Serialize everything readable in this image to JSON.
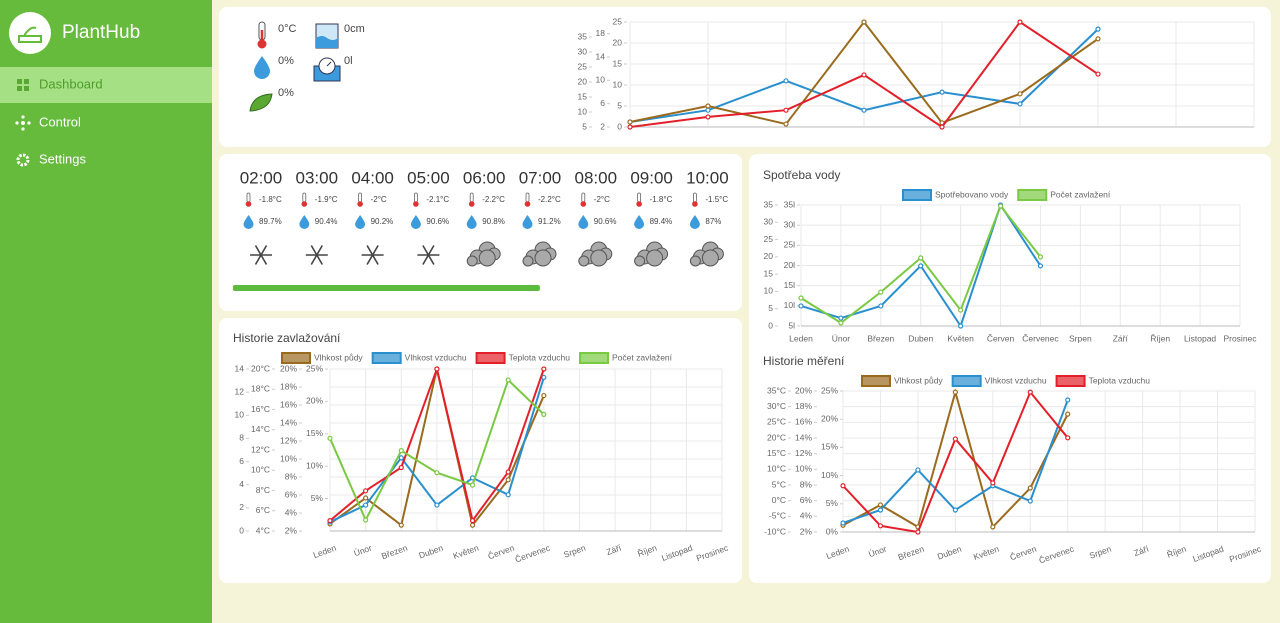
{
  "sidebar": {
    "brand": "PlantHub",
    "nav": [
      "Dashboard",
      "Control",
      "Settings"
    ]
  },
  "sensors": {
    "air_temperature": "0°C",
    "air_humidity": "0%",
    "soil_humidity": "0%",
    "water_level": "0cm",
    "water_used": "0l"
  },
  "forecast": {
    "hours": [
      {
        "time": "02:00",
        "temperature": "-1.8°C",
        "humidity": "89.7%",
        "weather": "snow"
      },
      {
        "time": "03:00",
        "temperature": "-1.9°C",
        "humidity": "90.4%",
        "weather": "snow"
      },
      {
        "time": "04:00",
        "temperature": "-2°C",
        "humidity": "90.2%",
        "weather": "snow"
      },
      {
        "time": "05:00",
        "temperature": "-2.1°C",
        "humidity": "90.6%",
        "weather": "snow"
      },
      {
        "time": "06:00",
        "temperature": "-2.2°C",
        "humidity": "90.8%",
        "weather": "cloud"
      },
      {
        "time": "07:00",
        "temperature": "-2.2°C",
        "humidity": "91.2%",
        "weather": "cloud"
      },
      {
        "time": "08:00",
        "temperature": "-2°C",
        "humidity": "90.6%",
        "weather": "cloud"
      },
      {
        "time": "09:00",
        "temperature": "-1.8°C",
        "humidity": "89.4%",
        "weather": "cloud"
      },
      {
        "time": "10:00",
        "temperature": "-1.5°C",
        "humidity": "87%",
        "weather": "cloud"
      }
    ],
    "progress": 62
  },
  "charts": {
    "overview": {
      "type": "line",
      "categories": [
        null,
        null,
        null,
        null,
        null,
        null,
        null,
        null,
        null
      ],
      "axes": [
        {
          "lim": [
            5,
            40
          ],
          "ticks": [
            5,
            10,
            15,
            20,
            25,
            30,
            35
          ]
        },
        {
          "lim": [
            2,
            20
          ],
          "ticks": [
            2,
            6,
            10,
            14,
            18
          ]
        },
        {
          "lim": [
            0,
            25
          ],
          "ticks": [
            0,
            5,
            10,
            15,
            20,
            25
          ]
        }
      ],
      "series": [
        {
          "color": "#2a8fcf",
          "axis": 2,
          "values": [
            1.2,
            4,
            11,
            4,
            8.3,
            5.5,
            23.3,
            null,
            null
          ]
        },
        {
          "color": "#9a6a1e",
          "axis": 2,
          "values": [
            1.2,
            5,
            0.7,
            25,
            1,
            7.9,
            21,
            null,
            null
          ]
        },
        {
          "color": "#e3202a",
          "axis": 2,
          "values": [
            0,
            2.4,
            4,
            12.4,
            0,
            25,
            12.6,
            null,
            null
          ]
        }
      ]
    },
    "water": {
      "type": "line",
      "title": "Spotřeba vody",
      "categories": [
        "Leden",
        "Únor",
        "Březen",
        "Duben",
        "Květen",
        "Červen",
        "Červenec",
        "Srpen",
        "Září",
        "Říjen",
        "Listopad",
        "Prosinec"
      ],
      "axes": [
        {
          "lim": [
            0,
            35
          ],
          "ticks": [
            0,
            5,
            10,
            15,
            20,
            25,
            30,
            35
          ]
        },
        {
          "lim": [
            5,
            35
          ],
          "ticks": [
            {
              "value": 5,
              "label": "5l"
            },
            {
              "value": 10,
              "label": "10l"
            },
            {
              "value": 15,
              "label": "15l"
            },
            {
              "value": 20,
              "label": "20l"
            },
            {
              "value": 25,
              "label": "25l"
            },
            {
              "value": 30,
              "label": "30l"
            },
            {
              "value": 35,
              "label": "35l"
            }
          ]
        }
      ],
      "series": [
        {
          "name": "Spotřebovano vody",
          "color": "#2a8fcf",
          "axis": 0,
          "values": [
            5.8,
            2.3,
            5.8,
            17.4,
            0,
            35,
            17.4,
            null,
            null,
            null,
            null,
            null
          ]
        },
        {
          "name": "Počet zavlažení",
          "color": "#7ac943",
          "axis": 0,
          "values": [
            8.1,
            0.9,
            9.8,
            19.7,
            4.6,
            34.7,
            20,
            null,
            null,
            null,
            null,
            null
          ]
        }
      ]
    },
    "irrigation": {
      "type": "line",
      "title": "Historie zavlažování",
      "categories": [
        "Leden",
        "Únor",
        "Březen",
        "Duben",
        "Květen",
        "Červen",
        "Červenec",
        "Srpen",
        "Září",
        "Říjen",
        "Listopad",
        "Prosinec"
      ],
      "axes": [
        {
          "lim": [
            0,
            14
          ],
          "ticks": [
            0,
            2,
            4,
            6,
            8,
            10,
            12,
            14
          ]
        },
        {
          "lim": [
            4,
            20
          ],
          "ticks": [
            {
              "value": 4,
              "label": "4°C"
            },
            {
              "value": 6,
              "label": "6°C"
            },
            {
              "value": 8,
              "label": "8°C"
            },
            {
              "value": 10,
              "label": "10°C"
            },
            {
              "value": 12,
              "label": "12°C"
            },
            {
              "value": 14,
              "label": "14°C"
            },
            {
              "value": 16,
              "label": "16°C"
            },
            {
              "value": 18,
              "label": "18°C"
            },
            {
              "value": 20,
              "label": "20°C"
            }
          ]
        },
        {
          "lim": [
            2,
            20
          ],
          "ticks": [
            {
              "value": 2,
              "label": "2%"
            },
            {
              "value": 4,
              "label": "4%"
            },
            {
              "value": 6,
              "label": "6%"
            },
            {
              "value": 8,
              "label": "8%"
            },
            {
              "value": 10,
              "label": "10%"
            },
            {
              "value": 12,
              "label": "12%"
            },
            {
              "value": 14,
              "label": "14%"
            },
            {
              "value": 16,
              "label": "16%"
            },
            {
              "value": 18,
              "label": "18%"
            },
            {
              "value": 20,
              "label": "20%"
            }
          ]
        },
        {
          "lim": [
            0,
            25
          ],
          "ticks": [
            {
              "value": 5,
              "label": "5%"
            },
            {
              "value": 10,
              "label": "10%"
            },
            {
              "value": 15,
              "label": "15%"
            },
            {
              "value": 20,
              "label": "20%"
            },
            {
              "value": 25,
              "label": "25%"
            }
          ]
        }
      ],
      "series": [
        {
          "name": "Vlhkost půdy",
          "color": "#9a6a1e",
          "axis": 3,
          "values": [
            1.1,
            5.1,
            0.9,
            25,
            0.9,
            7.9,
            20.9,
            null,
            null,
            null,
            null,
            null
          ]
        },
        {
          "name": "Vlhkost vzduchu",
          "color": "#2a8fcf",
          "axis": 3,
          "values": [
            1.4,
            4,
            11.3,
            4,
            8.2,
            5.6,
            23.7,
            null,
            null,
            null,
            null,
            null
          ]
        },
        {
          "name": "Teplota vzduchu",
          "color": "#e3202a",
          "axis": 3,
          "values": [
            1.6,
            6.2,
            9.8,
            25,
            1.6,
            9.1,
            25,
            null,
            null,
            null,
            null,
            null
          ]
        },
        {
          "name": "Počet zavlažení",
          "color": "#7ac943",
          "axis": 3,
          "values": [
            14.3,
            1.7,
            12.4,
            9,
            7.1,
            23.3,
            18,
            null,
            null,
            null,
            null,
            null
          ]
        }
      ]
    },
    "measurements": {
      "type": "line",
      "title": "Historie měření",
      "categories": [
        "Leden",
        "Únor",
        "Březen",
        "Duben",
        "Květen",
        "Červen",
        "Červenec",
        "Srpen",
        "Září",
        "Říjen",
        "Listopad",
        "Prosinec"
      ],
      "axes": [
        {
          "lim": [
            -10,
            35
          ],
          "ticks": [
            {
              "value": -10,
              "label": "-10°C"
            },
            {
              "value": -5,
              "label": "-5°C"
            },
            {
              "value": 0,
              "label": "0°C"
            },
            {
              "value": 5,
              "label": "5°C"
            },
            {
              "value": 10,
              "label": "10°C"
            },
            {
              "value": 15,
              "label": "15°C"
            },
            {
              "value": 20,
              "label": "20°C"
            },
            {
              "value": 25,
              "label": "25°C"
            },
            {
              "value": 30,
              "label": "30°C"
            },
            {
              "value": 35,
              "label": "35°C"
            }
          ]
        },
        {
          "lim": [
            2,
            20
          ],
          "ticks": [
            {
              "value": 2,
              "label": "2%"
            },
            {
              "value": 4,
              "label": "4%"
            },
            {
              "value": 6,
              "label": "6%"
            },
            {
              "value": 8,
              "label": "8%"
            },
            {
              "value": 10,
              "label": "10%"
            },
            {
              "value": 12,
              "label": "12%"
            },
            {
              "value": 14,
              "label": "14%"
            },
            {
              "value": 16,
              "label": "16%"
            },
            {
              "value": 18,
              "label": "18%"
            },
            {
              "value": 20,
              "label": "20%"
            }
          ]
        },
        {
          "lim": [
            0,
            25
          ],
          "ticks": [
            {
              "value": 0,
              "label": "0%"
            },
            {
              "value": 5,
              "label": "5%"
            },
            {
              "value": 10,
              "label": "10%"
            },
            {
              "value": 15,
              "label": "15%"
            },
            {
              "value": 20,
              "label": "20%"
            },
            {
              "value": 25,
              "label": "25%"
            }
          ]
        }
      ],
      "series": [
        {
          "name": "Vlhkost půdy",
          "color": "#9a6a1e",
          "axis": 2,
          "values": [
            1.2,
            4.8,
            0.9,
            24.8,
            0.9,
            7.8,
            20.9,
            null,
            null,
            null,
            null,
            null
          ]
        },
        {
          "name": "Vlhkost vzduchu",
          "color": "#2a8fcf",
          "axis": 2,
          "values": [
            1.6,
            3.9,
            11,
            3.9,
            8.2,
            5.5,
            23.4,
            null,
            null,
            null,
            null,
            null
          ]
        },
        {
          "name": "Teplota vzduchu",
          "color": "#e3202a",
          "axis": 2,
          "values": [
            8.2,
            1.1,
            0,
            16.5,
            8.7,
            24.8,
            16.7,
            null,
            null,
            null,
            null,
            null
          ]
        }
      ]
    }
  }
}
